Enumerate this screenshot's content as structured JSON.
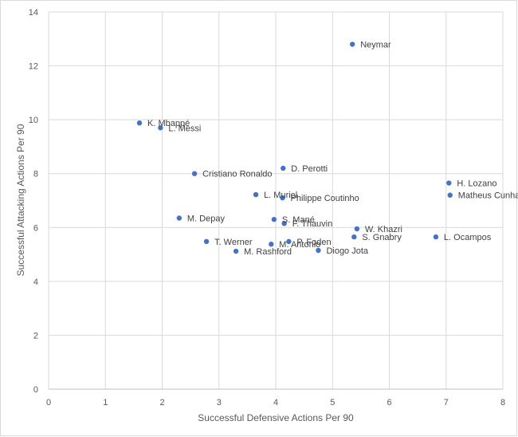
{
  "chart_data": {
    "type": "scatter",
    "title": "",
    "xlabel": "Successful Defensive Actions Per 90",
    "ylabel": "Successful Attacking Actions Per 90",
    "xlim": [
      0,
      8
    ],
    "ylim": [
      0,
      14
    ],
    "x_ticks": [
      0,
      1,
      2,
      3,
      4,
      5,
      6,
      7,
      8
    ],
    "y_ticks": [
      0,
      2,
      4,
      6,
      8,
      10,
      12,
      14
    ],
    "grid": true,
    "marker_color": "#4472c4",
    "points": [
      {
        "label": "Neymar",
        "x": 5.35,
        "y": 12.8
      },
      {
        "label": "K. Mbappé",
        "x": 1.6,
        "y": 9.88
      },
      {
        "label": "L. Messi",
        "x": 1.97,
        "y": 9.7
      },
      {
        "label": "Cristiano Ronaldo",
        "x": 2.57,
        "y": 8.0
      },
      {
        "label": "D. Perotti",
        "x": 4.13,
        "y": 8.2
      },
      {
        "label": "H. Lozano",
        "x": 7.05,
        "y": 7.65
      },
      {
        "label": "Matheus Cunha",
        "x": 7.07,
        "y": 7.2
      },
      {
        "label": "L. Muriel",
        "x": 3.65,
        "y": 7.22
      },
      {
        "label": "Philippe Coutinho",
        "x": 4.12,
        "y": 7.1
      },
      {
        "label": "M. Depay",
        "x": 2.3,
        "y": 6.35
      },
      {
        "label": "S. Mané",
        "x": 3.97,
        "y": 6.3
      },
      {
        "label": "F. Thauvin",
        "x": 4.15,
        "y": 6.15
      },
      {
        "label": "W. Khazri",
        "x": 5.43,
        "y": 5.95
      },
      {
        "label": "S. Gnabry",
        "x": 5.38,
        "y": 5.65
      },
      {
        "label": "L. Ocampos",
        "x": 6.82,
        "y": 5.65
      },
      {
        "label": "T. Werner",
        "x": 2.78,
        "y": 5.48
      },
      {
        "label": "P. Foden",
        "x": 4.23,
        "y": 5.48
      },
      {
        "label": "M. Antonio",
        "x": 3.92,
        "y": 5.38
      },
      {
        "label": "M. Rashford",
        "x": 3.3,
        "y": 5.12
      },
      {
        "label": "Diogo Jota",
        "x": 4.75,
        "y": 5.15
      }
    ]
  }
}
